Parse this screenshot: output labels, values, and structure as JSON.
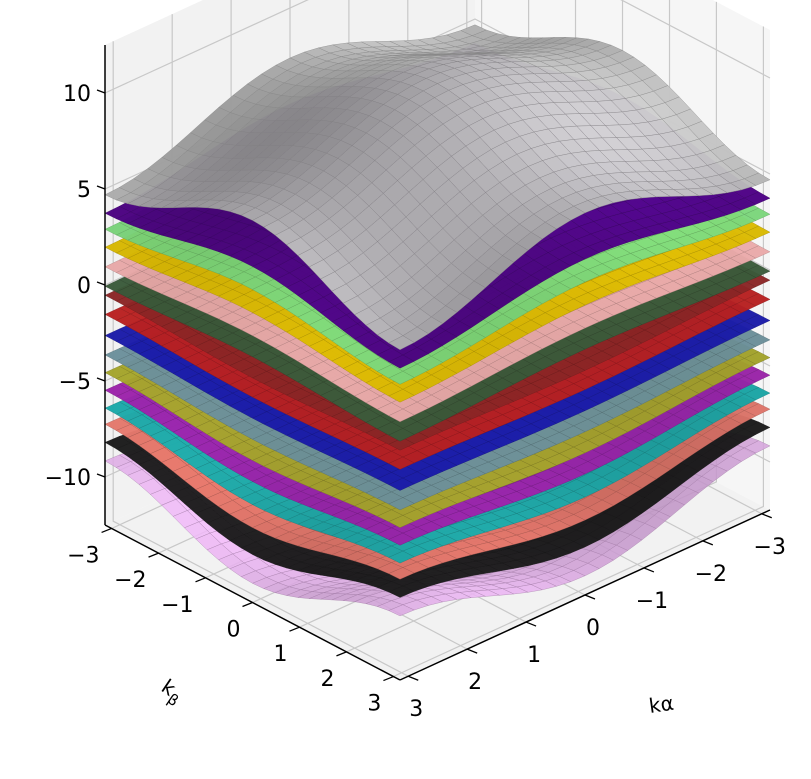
{
  "chart_data": {
    "type": "surface",
    "projection": "3d",
    "grid": true,
    "x_axis": {
      "label": "kα",
      "ticks": [
        "−3",
        "−2",
        "−1",
        "0",
        "1",
        "2",
        "3"
      ],
      "values": [
        -3,
        -2,
        -1,
        0,
        1,
        2,
        3
      ],
      "range": [
        -3.14,
        3.14
      ]
    },
    "y_axis": {
      "label": "kβ",
      "label_main": "k",
      "label_sub": "β",
      "ticks": [
        "−3",
        "−2",
        "−1",
        "0",
        "1",
        "2",
        "3"
      ],
      "values": [
        -3,
        -2,
        -1,
        0,
        1,
        2,
        3
      ],
      "range": [
        -3.14,
        3.14
      ]
    },
    "z_axis": {
      "label": "",
      "ticks": [
        "−10",
        "−5",
        "0",
        "5",
        "10"
      ],
      "values": [
        -10,
        -5,
        0,
        5,
        10
      ],
      "range": [
        -12.5,
        12.5
      ]
    },
    "series": [
      {
        "color": "#d9a6e0",
        "offset": -11.5,
        "amplitude": 2.6
      },
      {
        "color": "#1a1a1a",
        "offset": -10.0,
        "amplitude": 2.0
      },
      {
        "color": "#e0766a",
        "offset": -8.6,
        "amplitude": 1.5
      },
      {
        "color": "#1aa6a6",
        "offset": -7.4,
        "amplitude": 1.1
      },
      {
        "color": "#9a22a8",
        "offset": -6.2,
        "amplitude": 0.8
      },
      {
        "color": "#a3a32a",
        "offset": -5.1,
        "amplitude": 0.6
      },
      {
        "color": "#6b8f9a",
        "offset": -4.0,
        "amplitude": 0.4
      },
      {
        "color": "#1a1aa8",
        "offset": -2.9,
        "amplitude": 0.3
      },
      {
        "color": "#b82020",
        "offset": -1.8,
        "amplitude": 0.3
      },
      {
        "color": "#8a2525",
        "offset": -0.8,
        "amplitude": 0.3
      },
      {
        "color": "#3a5a3a",
        "offset": 0.3,
        "amplitude": 0.4
      },
      {
        "color": "#e8a8a8",
        "offset": 1.4,
        "amplitude": 0.5
      },
      {
        "color": "#d8b800",
        "offset": 2.6,
        "amplitude": 0.7
      },
      {
        "color": "#7ad47a",
        "offset": 3.8,
        "amplitude": 1.0
      },
      {
        "color": "#4b0082",
        "offset": 5.0,
        "amplitude": 1.4
      },
      {
        "color": "#b0b0b0",
        "offset": 7.4,
        "amplitude": 3.0
      }
    ]
  }
}
